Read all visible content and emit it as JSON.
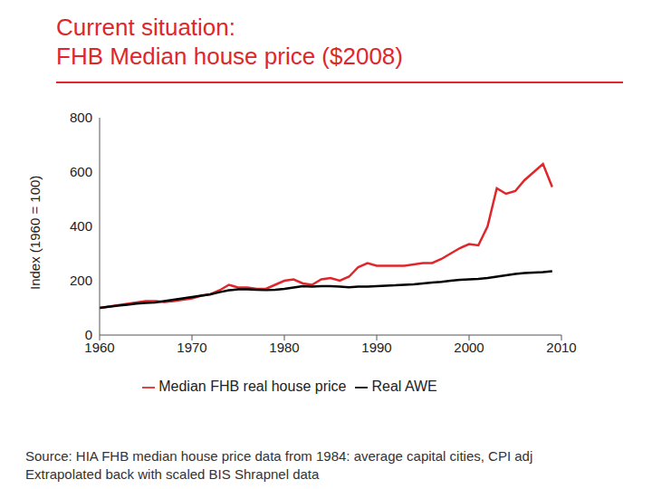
{
  "chart_data": {
    "type": "line",
    "title": "Current situation:",
    "subtitle": "FHB Median house price ($2008)",
    "y_label": "Index (1960 = 100)",
    "annotations": [
      "Source: HIA FHB median house price data from 1984: average capital cities, CPI adj",
      "Extrapolated back with scaled BIS Shrapnel data"
    ],
    "x": [
      1960,
      1961,
      1962,
      1963,
      1964,
      1965,
      1966,
      1967,
      1968,
      1969,
      1970,
      1971,
      1972,
      1973,
      1974,
      1975,
      1976,
      1977,
      1978,
      1979,
      1980,
      1981,
      1982,
      1983,
      1984,
      1985,
      1986,
      1987,
      1988,
      1989,
      1990,
      1991,
      1992,
      1993,
      1994,
      1995,
      1996,
      1997,
      1998,
      1999,
      2000,
      2001,
      2002,
      2003,
      2004,
      2005,
      2006,
      2007,
      2008,
      2009
    ],
    "series": [
      {
        "name": "Median FHB real house price",
        "color": "#e0262b",
        "values": [
          100,
          105,
          110,
          115,
          120,
          125,
          125,
          122,
          125,
          130,
          135,
          145,
          150,
          165,
          185,
          175,
          175,
          170,
          170,
          185,
          200,
          205,
          190,
          185,
          205,
          210,
          200,
          215,
          250,
          265,
          255,
          255,
          255,
          255,
          260,
          265,
          265,
          280,
          300,
          320,
          335,
          330,
          400,
          540,
          520,
          530,
          570,
          600,
          630,
          545
        ]
      },
      {
        "name": "Real AWE",
        "color": "#000000",
        "values": [
          100,
          104,
          108,
          112,
          116,
          118,
          120,
          125,
          130,
          135,
          140,
          145,
          150,
          158,
          165,
          168,
          168,
          167,
          166,
          167,
          170,
          175,
          180,
          178,
          180,
          180,
          178,
          176,
          178,
          178,
          180,
          182,
          183,
          185,
          187,
          190,
          193,
          196,
          200,
          203,
          205,
          207,
          210,
          215,
          220,
          225,
          228,
          230,
          232,
          235
        ]
      }
    ],
    "xlim": [
      1960,
      2010
    ],
    "xticks": [
      1960,
      1970,
      1980,
      1990,
      2000,
      2010
    ],
    "ylim": [
      0,
      800
    ],
    "yticks": [
      0,
      200,
      400,
      600,
      800
    ],
    "grid": false,
    "legend": "bottom"
  }
}
